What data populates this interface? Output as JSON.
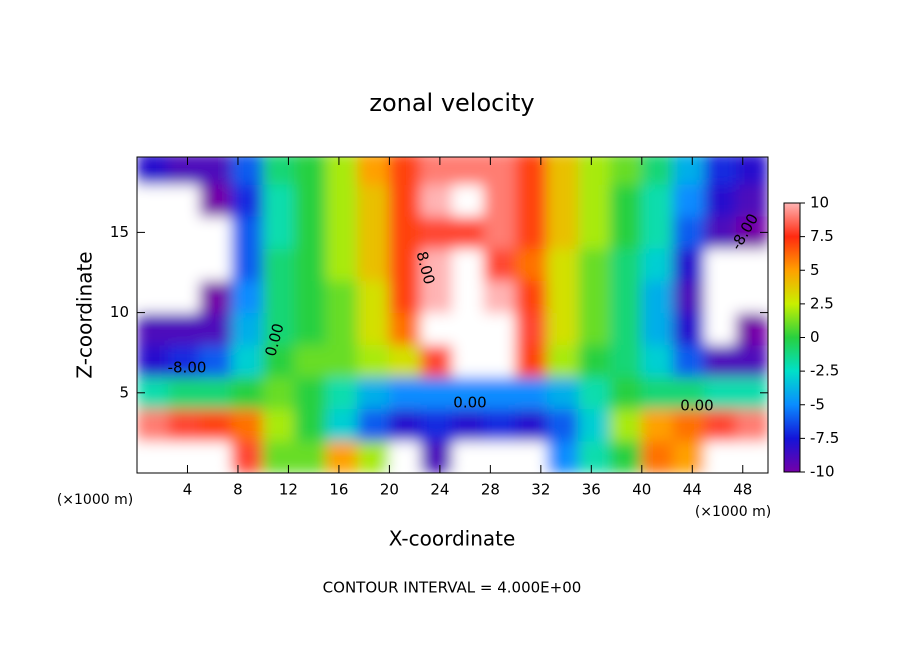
{
  "chart_data": {
    "type": "heatmap",
    "title": "zonal velocity",
    "xlabel": "X-coordinate",
    "ylabel": "Z-coordinate",
    "x_unit_label": "(×1000 m)",
    "footer": "CONTOUR INTERVAL = 4.000E+00",
    "xlim": [
      0,
      50
    ],
    "ylim": [
      0,
      19.7
    ],
    "xticks": [
      4,
      8,
      12,
      16,
      20,
      24,
      28,
      32,
      36,
      40,
      44,
      48
    ],
    "yticks": [
      5,
      10,
      15
    ],
    "x": [
      1.25,
      3.75,
      6.25,
      8.75,
      11.25,
      13.75,
      16.25,
      18.75,
      21.25,
      23.75,
      26.25,
      28.75,
      31.25,
      33.75,
      36.25,
      38.75,
      41.25,
      43.75,
      46.25,
      48.75
    ],
    "y": [
      1,
      3,
      5,
      7,
      9,
      11,
      13,
      15,
      17,
      19
    ],
    "z": [
      [
        12,
        12,
        11,
        8,
        1,
        1,
        5,
        2,
        -12,
        -9,
        -12,
        -12,
        -11,
        -5,
        -2,
        0,
        6,
        5,
        12,
        12
      ],
      [
        9,
        8,
        7,
        6,
        2,
        0,
        -3,
        -6,
        -8,
        -7,
        -8,
        -7,
        -8,
        -6,
        -3,
        2,
        5,
        6,
        8,
        9
      ],
      [
        -2,
        -1,
        -1,
        0,
        1,
        0,
        -2,
        -4,
        -5,
        -5,
        -5,
        -5,
        -5,
        -4,
        -2,
        0,
        -1,
        -1,
        -2,
        -2
      ],
      [
        -8,
        -7,
        -6,
        -3,
        0,
        1,
        1,
        2,
        3,
        8,
        11,
        11,
        7,
        2,
        0,
        -1,
        -3,
        -6,
        -9,
        -9
      ],
      [
        -9,
        -9,
        -9,
        -4,
        -1,
        0,
        1,
        3,
        6,
        11,
        12,
        11,
        8,
        3,
        1,
        -1,
        -4,
        -8,
        -12,
        -10
      ],
      [
        -12,
        -12,
        -10,
        -5,
        -1,
        0,
        1,
        3,
        7,
        10,
        12,
        10,
        7,
        3,
        1,
        -1,
        -4,
        -9,
        -12,
        -11
      ],
      [
        -12,
        -12,
        -11,
        -6,
        -1,
        0,
        2,
        4,
        7,
        10,
        11,
        8,
        6,
        3,
        1,
        -1,
        -3,
        -8,
        -11,
        -12
      ],
      [
        -12,
        -12,
        -11,
        -6,
        -2,
        0,
        2,
        4,
        7,
        8,
        8,
        9,
        7,
        4,
        2,
        0,
        -2,
        -6,
        -9,
        -10
      ],
      [
        -11,
        -12,
        -10,
        -7,
        -2,
        0,
        2,
        4,
        7,
        10,
        11,
        9,
        7,
        4,
        2,
        0,
        -2,
        -5,
        -8,
        -9
      ],
      [
        -8,
        -9,
        -9,
        -6,
        -1,
        0,
        2,
        5,
        7,
        9,
        9,
        9,
        7,
        4,
        2,
        1,
        -1,
        -4,
        -7,
        -8
      ]
    ],
    "clim": [
      -10,
      10
    ],
    "cticks": [
      10,
      7.5,
      5,
      2.5,
      0,
      -2.5,
      -5,
      -7.5,
      -10
    ],
    "colormap": [
      "#7400a8",
      "#1414d8",
      "#0a8cff",
      "#00e0c8",
      "#28d040",
      "#c8f000",
      "#ffa000",
      "#ff2a10",
      "#ffb4b4"
    ],
    "out_of_range_color": "#ffffff",
    "contour_labels": [
      "-8.00",
      "0.00",
      "8.00",
      "0.00",
      "0.00",
      "-8.00"
    ]
  }
}
